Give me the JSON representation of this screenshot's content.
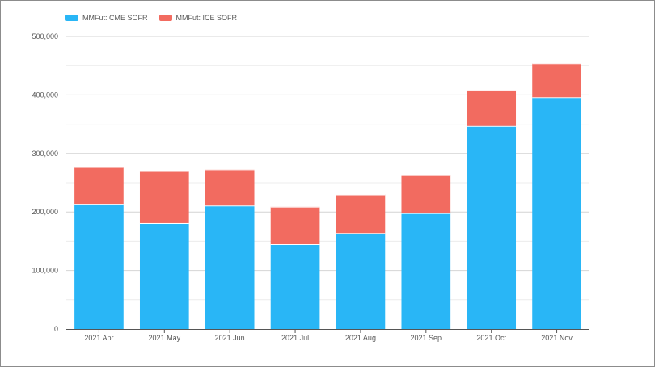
{
  "chart_data": {
    "type": "bar",
    "stacked": true,
    "categories": [
      "2021 Apr",
      "2021 May",
      "2021 Jun",
      "2021 Jul",
      "2021 Aug",
      "2021 Sep",
      "2021 Oct",
      "2021 Nov"
    ],
    "series": [
      {
        "name": "MMFut: CME SOFR",
        "color": "#29b6f6",
        "values": [
          214000,
          181000,
          211000,
          145000,
          164000,
          198000,
          347000,
          396000
        ]
      },
      {
        "name": "MMFut: ICE SOFR",
        "color": "#f26b60",
        "values": [
          63000,
          89000,
          62000,
          64000,
          66000,
          65000,
          61000,
          58000
        ]
      }
    ],
    "y_ticks": [
      "0",
      "100,000",
      "200,000",
      "300,000",
      "400,000",
      "500,000"
    ],
    "ylim": [
      0,
      500000
    ],
    "grid": true,
    "legend_position": "top-left",
    "title": "",
    "xlabel": "",
    "ylabel": ""
  }
}
